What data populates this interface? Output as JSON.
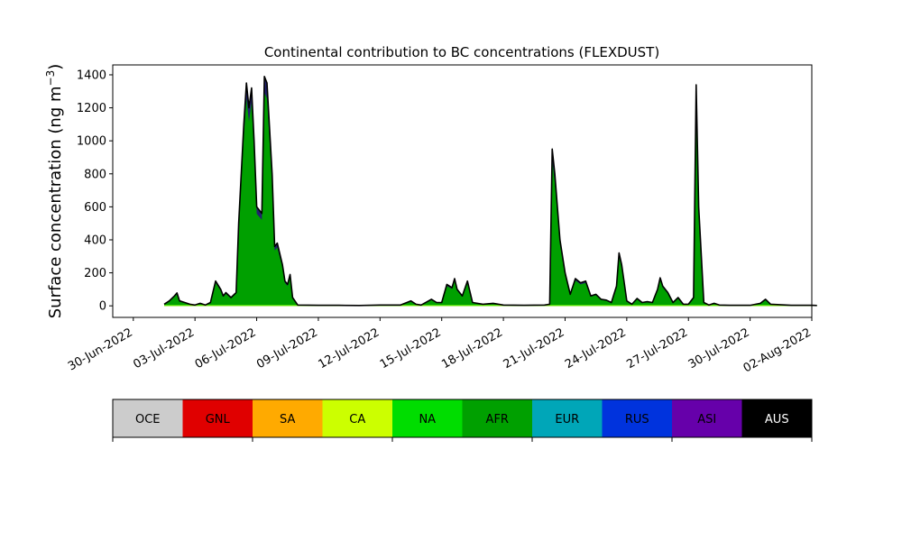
{
  "chart_data": {
    "type": "area",
    "title": "Continental contribution to BC concentrations (FLEXDUST)",
    "ylabel": "Surface concentration (ng m",
    "ylabel_sup": "−3",
    "ylabel_close": ")",
    "xlabel": "",
    "xlim": [
      "2022-06-29",
      "2022-08-02"
    ],
    "ylim": [
      -70,
      1460
    ],
    "y_ticks": [
      0,
      200,
      400,
      600,
      800,
      1000,
      1200,
      1400
    ],
    "x_ticks": [
      "2022-06-30",
      "2022-07-03",
      "2022-07-06",
      "2022-07-09",
      "2022-07-12",
      "2022-07-15",
      "2022-07-18",
      "2022-07-21",
      "2022-07-24",
      "2022-07-27",
      "2022-07-30",
      "2022-08-02"
    ],
    "x_tick_labels": [
      "30-Jun-2022",
      "03-Jul-2022",
      "06-Jul-2022",
      "09-Jul-2022",
      "12-Jul-2022",
      "15-Jul-2022",
      "18-Jul-2022",
      "21-Jul-2022",
      "24-Jul-2022",
      "27-Jul-2022",
      "30-Jul-2022",
      "02-Aug-2022"
    ],
    "grid": false,
    "total_series": {
      "name": "AUS",
      "color": "#000000",
      "points": [
        [
          "2022-07-01 12:00",
          10
        ],
        [
          "2022-07-01 18:00",
          30
        ],
        [
          "2022-07-02 00:00",
          60
        ],
        [
          "2022-07-02 03:00",
          78
        ],
        [
          "2022-07-02 06:00",
          30
        ],
        [
          "2022-07-02 12:00",
          20
        ],
        [
          "2022-07-02 18:00",
          10
        ],
        [
          "2022-07-03 00:00",
          5
        ],
        [
          "2022-07-03 06:00",
          15
        ],
        [
          "2022-07-03 12:00",
          5
        ],
        [
          "2022-07-03 18:00",
          20
        ],
        [
          "2022-07-04 00:00",
          150
        ],
        [
          "2022-07-04 06:00",
          100
        ],
        [
          "2022-07-04 09:00",
          60
        ],
        [
          "2022-07-04 12:00",
          80
        ],
        [
          "2022-07-04 18:00",
          50
        ],
        [
          "2022-07-05 00:00",
          80
        ],
        [
          "2022-07-05 03:00",
          500
        ],
        [
          "2022-07-05 09:00",
          1100
        ],
        [
          "2022-07-05 12:00",
          1350
        ],
        [
          "2022-07-05 15:00",
          1200
        ],
        [
          "2022-07-05 18:00",
          1320
        ],
        [
          "2022-07-05 21:00",
          1000
        ],
        [
          "2022-07-06 00:00",
          600
        ],
        [
          "2022-07-06 06:00",
          560
        ],
        [
          "2022-07-06 09:00",
          1390
        ],
        [
          "2022-07-06 12:00",
          1350
        ],
        [
          "2022-07-06 18:00",
          800
        ],
        [
          "2022-07-06 21:00",
          360
        ],
        [
          "2022-07-07 00:00",
          380
        ],
        [
          "2022-07-07 06:00",
          250
        ],
        [
          "2022-07-07 09:00",
          150
        ],
        [
          "2022-07-07 12:00",
          130
        ],
        [
          "2022-07-07 15:00",
          190
        ],
        [
          "2022-07-07 18:00",
          50
        ],
        [
          "2022-07-08 00:00",
          5
        ],
        [
          "2022-07-09 00:00",
          3
        ],
        [
          "2022-07-10 00:00",
          3
        ],
        [
          "2022-07-11 00:00",
          2
        ],
        [
          "2022-07-12 00:00",
          5
        ],
        [
          "2022-07-13 00:00",
          5
        ],
        [
          "2022-07-13 12:00",
          30
        ],
        [
          "2022-07-13 18:00",
          10
        ],
        [
          "2022-07-14 00:00",
          5
        ],
        [
          "2022-07-14 12:00",
          40
        ],
        [
          "2022-07-14 18:00",
          20
        ],
        [
          "2022-07-15 00:00",
          20
        ],
        [
          "2022-07-15 06:00",
          130
        ],
        [
          "2022-07-15 12:00",
          110
        ],
        [
          "2022-07-15 15:00",
          165
        ],
        [
          "2022-07-15 18:00",
          100
        ],
        [
          "2022-07-16 00:00",
          60
        ],
        [
          "2022-07-16 06:00",
          150
        ],
        [
          "2022-07-16 12:00",
          20
        ],
        [
          "2022-07-17 00:00",
          10
        ],
        [
          "2022-07-17 12:00",
          15
        ],
        [
          "2022-07-18 00:00",
          5
        ],
        [
          "2022-07-19 00:00",
          3
        ],
        [
          "2022-07-20 00:00",
          5
        ],
        [
          "2022-07-20 06:00",
          10
        ],
        [
          "2022-07-20 09:00",
          950
        ],
        [
          "2022-07-20 12:00",
          800
        ],
        [
          "2022-07-20 18:00",
          400
        ],
        [
          "2022-07-21 00:00",
          200
        ],
        [
          "2022-07-21 06:00",
          70
        ],
        [
          "2022-07-21 12:00",
          165
        ],
        [
          "2022-07-21 18:00",
          140
        ],
        [
          "2022-07-22 00:00",
          150
        ],
        [
          "2022-07-22 06:00",
          60
        ],
        [
          "2022-07-22 12:00",
          70
        ],
        [
          "2022-07-22 18:00",
          40
        ],
        [
          "2022-07-23 00:00",
          35
        ],
        [
          "2022-07-23 06:00",
          20
        ],
        [
          "2022-07-23 12:00",
          120
        ],
        [
          "2022-07-23 15:00",
          320
        ],
        [
          "2022-07-23 18:00",
          250
        ],
        [
          "2022-07-24 00:00",
          30
        ],
        [
          "2022-07-24 06:00",
          10
        ],
        [
          "2022-07-24 12:00",
          45
        ],
        [
          "2022-07-24 18:00",
          20
        ],
        [
          "2022-07-25 00:00",
          25
        ],
        [
          "2022-07-25 06:00",
          20
        ],
        [
          "2022-07-25 12:00",
          100
        ],
        [
          "2022-07-25 15:00",
          170
        ],
        [
          "2022-07-25 18:00",
          120
        ],
        [
          "2022-07-26 00:00",
          80
        ],
        [
          "2022-07-26 06:00",
          20
        ],
        [
          "2022-07-26 12:00",
          50
        ],
        [
          "2022-07-26 18:00",
          10
        ],
        [
          "2022-07-27 00:00",
          10
        ],
        [
          "2022-07-27 06:00",
          50
        ],
        [
          "2022-07-27 09:00",
          1340
        ],
        [
          "2022-07-27 12:00",
          600
        ],
        [
          "2022-07-27 18:00",
          20
        ],
        [
          "2022-07-28 00:00",
          5
        ],
        [
          "2022-07-28 06:00",
          15
        ],
        [
          "2022-07-28 12:00",
          5
        ],
        [
          "2022-07-29 00:00",
          3
        ],
        [
          "2022-07-30 00:00",
          3
        ],
        [
          "2022-07-30 12:00",
          15
        ],
        [
          "2022-07-30 18:00",
          40
        ],
        [
          "2022-07-31 00:00",
          10
        ],
        [
          "2022-08-01 00:00",
          3
        ],
        [
          "2022-08-02 00:00",
          3
        ],
        [
          "2022-08-02 06:00",
          2
        ]
      ]
    },
    "dominant_series": {
      "name": "AFR",
      "color": "#00a000",
      "fraction": 0.93
    },
    "background_series": [
      {
        "name": "NA",
        "color": "#00dd00",
        "level": 6
      },
      {
        "name": "CA",
        "color": "#ccff00",
        "level": 3
      }
    ],
    "legend_position": "bottom colorbar",
    "legend": [
      {
        "name": "OCE",
        "color": "#cccccc",
        "text_color": "#000000"
      },
      {
        "name": "GNL",
        "color": "#e00000",
        "text_color": "#000000"
      },
      {
        "name": "SA",
        "color": "#ffaa00",
        "text_color": "#000000"
      },
      {
        "name": "CA",
        "color": "#ccff00",
        "text_color": "#000000"
      },
      {
        "name": "NA",
        "color": "#00dd00",
        "text_color": "#000000"
      },
      {
        "name": "AFR",
        "color": "#00a000",
        "text_color": "#000000"
      },
      {
        "name": "EUR",
        "color": "#00a6b8",
        "text_color": "#000000"
      },
      {
        "name": "RUS",
        "color": "#0033dd",
        "text_color": "#000000"
      },
      {
        "name": "ASI",
        "color": "#6600aa",
        "text_color": "#000000"
      },
      {
        "name": "AUS",
        "color": "#000000",
        "text_color": "#ffffff"
      }
    ]
  }
}
